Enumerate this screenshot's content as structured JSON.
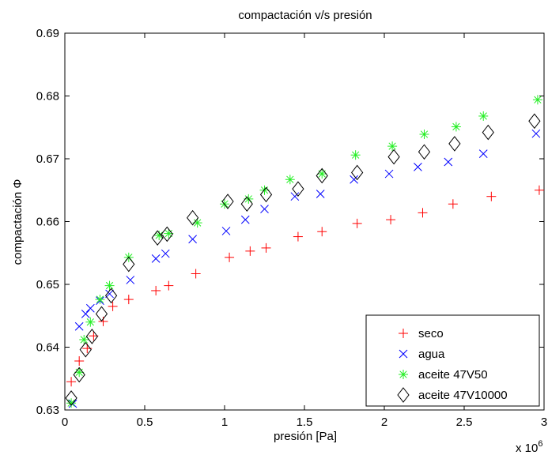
{
  "chart_data": {
    "type": "scatter",
    "title": "compactación v/s presión",
    "xlabel": "presión [Pa]",
    "ylabel": "compactación Φ",
    "x_multiplier_label": "x 10",
    "x_multiplier_exponent": "6",
    "xlim": [
      0,
      3
    ],
    "ylim": [
      0.63,
      0.69
    ],
    "x_ticks": [
      0,
      0.5,
      1,
      1.5,
      2,
      2.5,
      3
    ],
    "x_tick_labels": [
      "0",
      "0.5",
      "1",
      "1.5",
      "2",
      "2.5",
      "3"
    ],
    "y_ticks": [
      0.63,
      0.64,
      0.65,
      0.66,
      0.67,
      0.68,
      0.69
    ],
    "y_tick_labels": [
      "0.63",
      "0.64",
      "0.65",
      "0.66",
      "0.67",
      "0.68",
      "0.69"
    ],
    "grid": false,
    "legend_position": "bottom-right",
    "series": [
      {
        "name": "seco",
        "marker": "plus",
        "color": "#ff0000",
        "points": [
          [
            0.04,
            0.6345
          ],
          [
            0.09,
            0.6378
          ],
          [
            0.14,
            0.6398
          ],
          [
            0.18,
            0.6418
          ],
          [
            0.24,
            0.6441
          ],
          [
            0.3,
            0.6465
          ],
          [
            0.4,
            0.6476
          ],
          [
            0.57,
            0.649
          ],
          [
            0.65,
            0.6498
          ],
          [
            0.82,
            0.6517
          ],
          [
            1.03,
            0.6543
          ],
          [
            1.16,
            0.6553
          ],
          [
            1.26,
            0.6558
          ],
          [
            1.46,
            0.6576
          ],
          [
            1.61,
            0.6584
          ],
          [
            1.83,
            0.6597
          ],
          [
            2.04,
            0.6603
          ],
          [
            2.24,
            0.6614
          ],
          [
            2.43,
            0.6628
          ],
          [
            2.67,
            0.664
          ],
          [
            2.97,
            0.665
          ]
        ]
      },
      {
        "name": "agua",
        "marker": "x",
        "color": "#0000ff",
        "points": [
          [
            0.05,
            0.631
          ],
          [
            0.09,
            0.6433
          ],
          [
            0.13,
            0.6453
          ],
          [
            0.16,
            0.6462
          ],
          [
            0.22,
            0.6474
          ],
          [
            0.28,
            0.6485
          ],
          [
            0.41,
            0.6507
          ],
          [
            0.57,
            0.6541
          ],
          [
            0.63,
            0.6549
          ],
          [
            0.8,
            0.6572
          ],
          [
            1.01,
            0.6585
          ],
          [
            1.13,
            0.6603
          ],
          [
            1.25,
            0.662
          ],
          [
            1.44,
            0.664
          ],
          [
            1.6,
            0.6644
          ],
          [
            1.81,
            0.6667
          ],
          [
            2.03,
            0.6676
          ],
          [
            2.21,
            0.6687
          ],
          [
            2.4,
            0.6695
          ],
          [
            2.62,
            0.6708
          ],
          [
            2.95,
            0.674
          ]
        ]
      },
      {
        "name": "aceite 47V50",
        "marker": "asterisk",
        "color": "#22ee22",
        "points": [
          [
            0.04,
            0.6311
          ],
          [
            0.09,
            0.636
          ],
          [
            0.12,
            0.6412
          ],
          [
            0.16,
            0.644
          ],
          [
            0.22,
            0.6476
          ],
          [
            0.28,
            0.6498
          ],
          [
            0.4,
            0.6543
          ],
          [
            0.59,
            0.6578
          ],
          [
            0.65,
            0.6581
          ],
          [
            0.83,
            0.6598
          ],
          [
            1.0,
            0.6628
          ],
          [
            1.15,
            0.6636
          ],
          [
            1.25,
            0.665
          ],
          [
            1.41,
            0.6667
          ],
          [
            1.61,
            0.6676
          ],
          [
            1.82,
            0.6706
          ],
          [
            2.05,
            0.672
          ],
          [
            2.25,
            0.6739
          ],
          [
            2.45,
            0.6751
          ],
          [
            2.62,
            0.6768
          ],
          [
            2.96,
            0.6794
          ]
        ]
      },
      {
        "name": "aceite 47V10000",
        "marker": "diamond",
        "color": "#000000",
        "points": [
          [
            0.04,
            0.6319
          ],
          [
            0.09,
            0.6356
          ],
          [
            0.13,
            0.6396
          ],
          [
            0.17,
            0.6417
          ],
          [
            0.23,
            0.6453
          ],
          [
            0.29,
            0.6482
          ],
          [
            0.4,
            0.6532
          ],
          [
            0.58,
            0.6574
          ],
          [
            0.64,
            0.658
          ],
          [
            0.8,
            0.6606
          ],
          [
            1.02,
            0.6632
          ],
          [
            1.14,
            0.6628
          ],
          [
            1.26,
            0.6643
          ],
          [
            1.46,
            0.6652
          ],
          [
            1.61,
            0.6673
          ],
          [
            1.83,
            0.6678
          ],
          [
            2.06,
            0.6703
          ],
          [
            2.25,
            0.6711
          ],
          [
            2.44,
            0.6724
          ],
          [
            2.65,
            0.6742
          ],
          [
            2.94,
            0.676
          ]
        ]
      }
    ]
  }
}
